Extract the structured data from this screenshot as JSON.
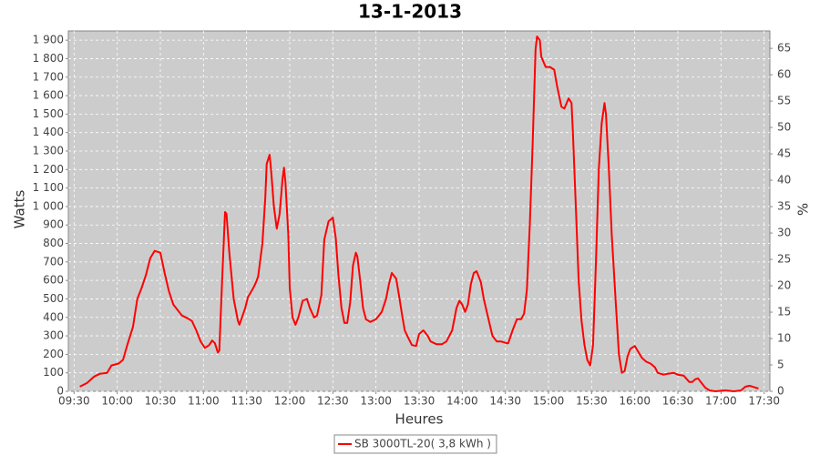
{
  "chart_data": {
    "type": "line",
    "title": "13-1-2013",
    "x_label": "Heures",
    "y_label": "Watts",
    "y2_label": "%",
    "xlim": [
      566,
      1054
    ],
    "xticks": [
      {
        "value": 570,
        "label": "09:30"
      },
      {
        "value": 600,
        "label": "10:00"
      },
      {
        "value": 630,
        "label": "10:30"
      },
      {
        "value": 660,
        "label": "11:00"
      },
      {
        "value": 690,
        "label": "11:30"
      },
      {
        "value": 720,
        "label": "12:00"
      },
      {
        "value": 750,
        "label": "12:30"
      },
      {
        "value": 780,
        "label": "13:00"
      },
      {
        "value": 810,
        "label": "13:30"
      },
      {
        "value": 840,
        "label": "14:00"
      },
      {
        "value": 870,
        "label": "14:30"
      },
      {
        "value": 900,
        "label": "15:00"
      },
      {
        "value": 930,
        "label": "15:30"
      },
      {
        "value": 960,
        "label": "16:00"
      },
      {
        "value": 990,
        "label": "16:30"
      },
      {
        "value": 1020,
        "label": "17:00"
      },
      {
        "value": 1050,
        "label": "17:30"
      }
    ],
    "ylim": [
      0,
      1950
    ],
    "yticks": [
      0,
      100,
      200,
      300,
      400,
      500,
      600,
      700,
      800,
      900,
      {
        "value": 1000,
        "label": "1 000"
      },
      {
        "value": 1100,
        "label": "1 100"
      },
      {
        "value": 1200,
        "label": "1 200"
      },
      {
        "value": 1300,
        "label": "1 300"
      },
      {
        "value": 1400,
        "label": "1 400"
      },
      {
        "value": 1500,
        "label": "1 500"
      },
      {
        "value": 1600,
        "label": "1 600"
      },
      {
        "value": 1700,
        "label": "1 700"
      },
      {
        "value": 1800,
        "label": "1 800"
      },
      {
        "value": 1900,
        "label": "1 900"
      }
    ],
    "y2lim": [
      0,
      68.3
    ],
    "y2ticks": [
      0,
      5,
      10,
      15,
      20,
      25,
      30,
      35,
      40,
      45,
      50,
      55,
      60,
      65
    ],
    "grid": true,
    "legend": "bottom",
    "x": [
      574,
      579,
      584,
      588,
      593,
      596,
      601,
      604,
      607,
      611,
      614,
      617,
      620,
      623,
      626,
      630,
      633,
      636,
      639,
      642,
      645,
      649,
      652,
      655,
      658,
      661,
      664,
      666,
      668,
      670,
      671,
      673,
      675,
      676,
      678,
      681,
      684,
      685,
      689,
      691,
      694,
      696,
      698,
      701,
      703,
      704,
      706,
      707,
      709,
      711,
      713,
      715,
      716,
      717,
      719,
      720,
      722,
      724,
      726,
      729,
      732,
      734,
      737,
      739,
      742,
      744,
      747,
      750,
      752,
      754,
      756,
      758,
      760,
      762,
      764,
      766,
      767,
      769,
      771,
      773,
      776,
      780,
      784,
      787,
      789,
      791,
      794,
      796,
      798,
      800,
      803,
      805,
      808,
      810,
      813,
      816,
      818,
      822,
      826,
      829,
      833,
      836,
      838,
      840,
      842,
      844,
      846,
      848,
      850,
      853,
      855,
      858,
      861,
      864,
      867,
      871,
      872,
      875,
      878,
      881,
      883,
      885,
      887,
      889,
      891,
      892,
      894,
      895,
      898,
      901,
      904,
      906,
      909,
      911,
      914,
      916,
      917,
      919,
      921,
      923,
      925,
      927,
      929,
      931,
      933,
      935,
      937,
      939,
      940,
      942,
      944,
      947,
      949,
      951,
      953,
      955,
      957,
      960,
      962,
      965,
      968,
      971,
      974,
      976,
      980,
      983,
      987,
      990,
      994,
      998,
      1000,
      1002,
      1004,
      1007,
      1009,
      1012,
      1016,
      1023,
      1029,
      1034,
      1037,
      1040,
      1044,
      1046
    ],
    "series": [
      {
        "name": "SB 3000TL-20( 3,8 kWh )",
        "color": "#ff0000",
        "values": [
          25,
          45,
          80,
          95,
          100,
          140,
          150,
          170,
          250,
          350,
          500,
          560,
          630,
          720,
          760,
          750,
          640,
          540,
          470,
          440,
          410,
          395,
          380,
          330,
          270,
          235,
          250,
          275,
          260,
          210,
          220,
          600,
          970,
          960,
          750,
          500,
          380,
          360,
          450,
          510,
          550,
          580,
          620,
          800,
          1050,
          1230,
          1280,
          1200,
          1000,
          880,
          960,
          1150,
          1210,
          1130,
          850,
          560,
          400,
          360,
          400,
          490,
          500,
          450,
          400,
          410,
          520,
          820,
          920,
          940,
          830,
          620,
          450,
          370,
          370,
          480,
          680,
          750,
          730,
          600,
          450,
          390,
          375,
          390,
          430,
          500,
          580,
          640,
          610,
          520,
          420,
          330,
          280,
          250,
          245,
          310,
          330,
          300,
          270,
          255,
          255,
          270,
          330,
          450,
          490,
          470,
          430,
          470,
          580,
          640,
          650,
          590,
          500,
          400,
          300,
          270,
          270,
          260,
          260,
          330,
          390,
          390,
          420,
          550,
          900,
          1350,
          1850,
          1920,
          1900,
          1810,
          1755,
          1755,
          1740,
          1650,
          1540,
          1530,
          1585,
          1560,
          1400,
          1000,
          600,
          380,
          250,
          170,
          140,
          250,
          700,
          1200,
          1450,
          1560,
          1500,
          1200,
          850,
          450,
          200,
          100,
          110,
          190,
          230,
          245,
          220,
          180,
          160,
          150,
          130,
          100,
          90,
          95,
          100,
          90,
          85,
          50,
          50,
          65,
          70,
          40,
          20,
          5,
          0,
          5,
          0,
          5,
          25,
          30,
          20,
          15
        ]
      }
    ]
  }
}
